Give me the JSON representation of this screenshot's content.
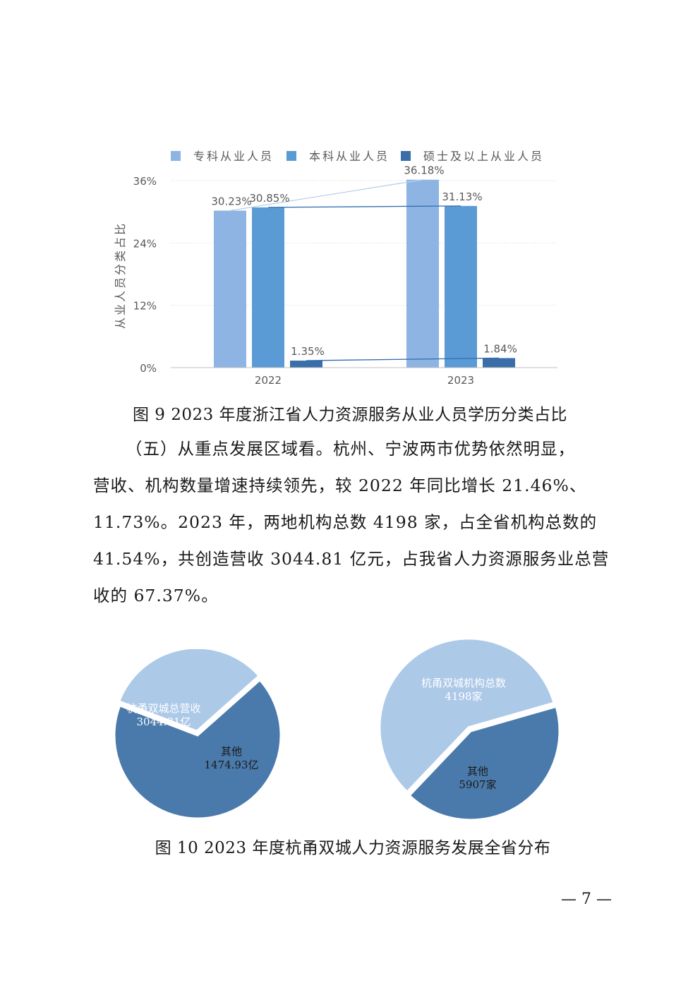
{
  "chart_data": [
    {
      "type": "bar",
      "categories": [
        "2022",
        "2023"
      ],
      "series": [
        {
          "name": "专科从业人员",
          "values": [
            30.23,
            36.18
          ],
          "labels": [
            "30.23%",
            "36.18%"
          ],
          "color": "#8db4e2"
        },
        {
          "name": "本科从业人员",
          "values": [
            30.85,
            31.13
          ],
          "labels": [
            "30.85%",
            "31.13%"
          ],
          "color": "#5b9bd5"
        },
        {
          "name": "硕士及以上从业人员",
          "values": [
            1.35,
            1.84
          ],
          "labels": [
            "1.35%",
            "1.84%"
          ],
          "color": "#3a6ea8"
        }
      ],
      "ylabel": "从业人员分类占比",
      "ylim": [
        0,
        36
      ],
      "yticks": [
        "0%",
        "12%",
        "24%",
        "36%"
      ],
      "ytick_values": [
        0,
        12,
        24,
        36
      ],
      "legend": "top",
      "grid": true
    },
    {
      "type": "pie",
      "slices": [
        {
          "label": "杭甬双城总营收",
          "value_label": "3044.81亿",
          "value": 3044.81,
          "color": "#4a7aab"
        },
        {
          "label": "其他",
          "value_label": "1474.93亿",
          "value": 1474.93,
          "color": "#adc9e8"
        }
      ]
    },
    {
      "type": "pie",
      "slices": [
        {
          "label": "杭甬双城机构总数",
          "value_label": "4198家",
          "value": 4198,
          "color": "#4a7aab"
        },
        {
          "label": "其他",
          "value_label": "5907家",
          "value": 5907,
          "color": "#adc9e8"
        }
      ]
    }
  ],
  "captions": {
    "fig9": "图 9  2023 年度浙江省人力资源服务从业人员学历分类占比",
    "fig10": "图 10  2023 年度杭甬双城人力资源服务发展全省分布"
  },
  "paragraph": {
    "lines": [
      "（五）从重点发展区域看。杭州、宁波两市优势依然明显，",
      "营收、机构数量增速持续领先，较 2022 年同比增长 21.46%、",
      "11.73%。2023 年，两地机构总数 4198 家，占全省机构总数的",
      "41.54%，共创造营收 3044.81 亿元，占我省人力资源服务业总营",
      "收的 67.37%。"
    ]
  },
  "page_number": "— 7 —"
}
